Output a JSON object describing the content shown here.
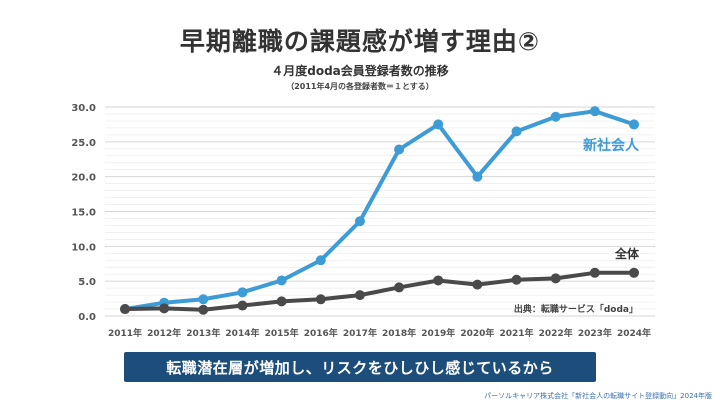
{
  "slide_title": "早期離職の課題感が増す理由②",
  "banner_text": "転職潜在層が増加し、リスクをひしひし感じているから",
  "credit": "パーソルキャリア株式会社「新社会人の転職サイト登録動向」2024年版",
  "chart_data": {
    "type": "line",
    "title": "４月度doda会員登録者数の推移",
    "subtitle": "（2011年4月の各登録者数＝１とする）",
    "source_note": "出典：転職サービス「doda」",
    "categories": [
      "2011年",
      "2012年",
      "2013年",
      "2014年",
      "2015年",
      "2016年",
      "2017年",
      "2018年",
      "2019年",
      "2020年",
      "2021年",
      "2022年",
      "2023年",
      "2024年"
    ],
    "ylim": [
      0,
      30
    ],
    "yticks": [
      "0.0",
      "5.0",
      "10.0",
      "15.0",
      "20.0",
      "25.0",
      "30.0"
    ],
    "grid": true,
    "series": [
      {
        "name": "新社会人",
        "color": "#3d9bd6",
        "values": [
          1.0,
          1.9,
          2.4,
          3.4,
          5.1,
          8.0,
          13.6,
          23.9,
          27.5,
          20.0,
          26.5,
          28.6,
          29.4,
          27.5
        ]
      },
      {
        "name": "全体",
        "color": "#4a4a4a",
        "values": [
          1.0,
          1.1,
          0.9,
          1.5,
          2.1,
          2.4,
          3.0,
          4.1,
          5.1,
          4.5,
          5.2,
          5.4,
          6.2,
          6.2
        ]
      }
    ]
  }
}
